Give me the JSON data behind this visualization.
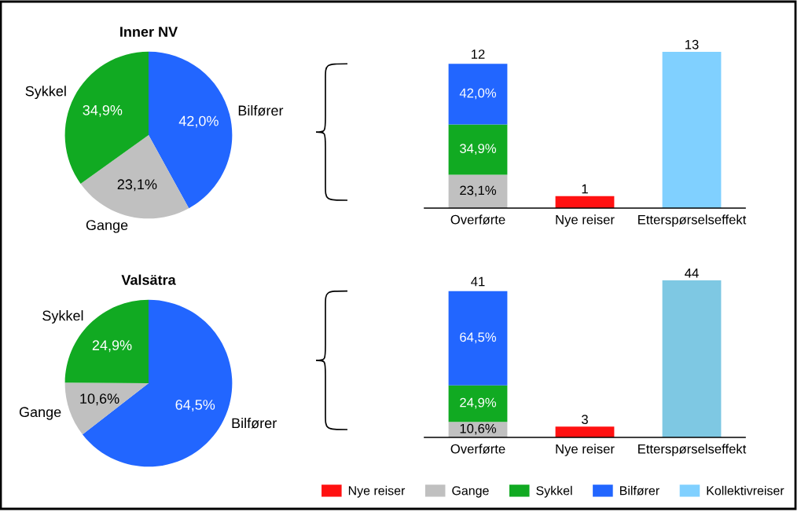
{
  "chart_data": [
    {
      "type": "pie",
      "title": "Inner NV",
      "categories": [
        "Bilfører",
        "Gange",
        "Sykkel"
      ],
      "values": [
        42.0,
        23.1,
        34.9
      ],
      "colors": [
        "#2266ff",
        "#c0c0c0",
        "#11aa22"
      ],
      "value_labels": [
        "42,0%",
        "23,1%",
        "34,9%"
      ]
    },
    {
      "type": "bar",
      "stacked": true,
      "legend": "bottom",
      "categories": [
        "Overførte",
        "Nye reiser",
        "Etterspørselseffekt"
      ],
      "totals": [
        "12",
        null,
        null
      ],
      "series": [
        {
          "name": "Nye reiser",
          "color": "#ff1111",
          "values": [
            null,
            1,
            null
          ],
          "value_labels": [
            null,
            "1",
            null
          ]
        },
        {
          "name": "Gange",
          "color": "#c0c0c0",
          "values": [
            2.77,
            null,
            null
          ]
        },
        {
          "name": "Sykkel",
          "color": "#11aa22",
          "values": [
            4.19,
            null,
            null
          ]
        },
        {
          "name": "Bilfører",
          "color": "#2266ff",
          "values": [
            5.04,
            null,
            null
          ]
        },
        {
          "name": "Kollektivreiser",
          "color": "#80d0ff",
          "values": [
            null,
            null,
            13
          ],
          "value_labels": [
            null,
            null,
            "13"
          ]
        }
      ],
      "annotations": [
        "23,1%",
        "34,9%",
        "42,0%"
      ]
    },
    {
      "type": "pie",
      "title": "Valsätra",
      "categories": [
        "Bilfører",
        "Gange",
        "Sykkel"
      ],
      "values": [
        64.5,
        10.6,
        24.9
      ],
      "colors": [
        "#2266ff",
        "#c0c0c0",
        "#11aa22"
      ],
      "value_labels": [
        "64,5%",
        "10,6%",
        "24,9%"
      ]
    },
    {
      "type": "bar",
      "stacked": true,
      "categories": [
        "Overførte",
        "Nye reiser",
        "Etterspørselseffekt"
      ],
      "totals": [
        "41",
        null,
        null
      ],
      "series": [
        {
          "color": "#ff1111",
          "values": [
            null,
            3,
            null
          ],
          "value_labels": [
            null,
            "3",
            null
          ]
        },
        {
          "color": "#c0c0c0",
          "values": [
            4.35,
            null,
            null
          ]
        },
        {
          "color": "#11aa22",
          "values": [
            10.21,
            null,
            null
          ]
        },
        {
          "color": "#2266ff",
          "values": [
            26.44,
            null,
            null
          ]
        },
        {
          "color": "#7ec8e3",
          "values": [
            null,
            null,
            44
          ],
          "value_labels": [
            null,
            null,
            "44"
          ]
        }
      ],
      "annotations": [
        "10,6%",
        "24,9%",
        "64,5%"
      ]
    }
  ]
}
